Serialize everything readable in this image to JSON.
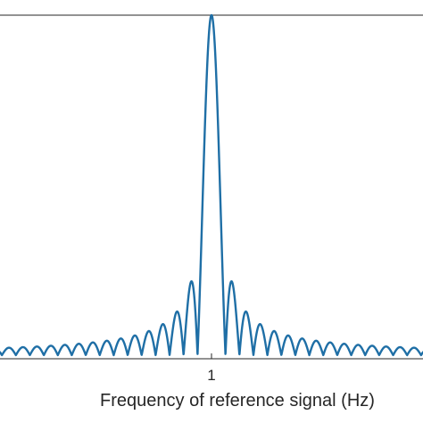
{
  "chart_data": {
    "type": "line",
    "title": "",
    "xlabel": "Frequency of reference signal (Hz)",
    "ylabel": "",
    "x_ticks": [
      1
    ],
    "x_tick_labels": [
      "1"
    ],
    "xlim": [
      0.667,
      1.333
    ],
    "ylim": [
      0,
      1
    ],
    "grid": false,
    "legend": "none",
    "series": [
      {
        "color": "#1f6fa6",
        "function": "abs(sinc)",
        "center_x": 1,
        "first_null_offset": 0.022,
        "peak_value": 1
      }
    ]
  }
}
